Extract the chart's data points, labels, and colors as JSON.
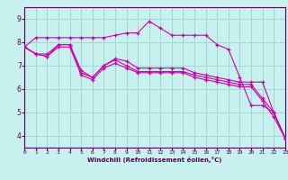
{
  "background_color": "#c8f0ee",
  "grid_color": "#a0d8d4",
  "line_color": "#cc00aa",
  "xlim": [
    0,
    23
  ],
  "ylim": [
    3.5,
    9.5
  ],
  "yticks": [
    4,
    5,
    6,
    7,
    8,
    9
  ],
  "xticks": [
    0,
    1,
    2,
    3,
    4,
    5,
    6,
    7,
    8,
    9,
    10,
    11,
    12,
    13,
    14,
    15,
    16,
    17,
    18,
    19,
    20,
    21,
    22,
    23
  ],
  "xlabel": "Windchill (Refroidissement éolien,°C)",
  "series": [
    [
      7.8,
      8.2,
      8.2,
      8.2,
      8.2,
      8.2,
      8.2,
      8.2,
      8.3,
      8.4,
      8.4,
      8.9,
      8.6,
      8.3,
      8.3,
      8.3,
      8.3,
      7.9,
      7.7,
      6.5,
      5.3,
      5.3,
      5.0,
      3.9
    ],
    [
      7.8,
      7.5,
      7.5,
      7.9,
      7.9,
      6.8,
      6.5,
      7.0,
      7.3,
      7.2,
      6.9,
      6.9,
      6.9,
      6.9,
      6.9,
      6.7,
      6.6,
      6.5,
      6.4,
      6.3,
      6.3,
      6.3,
      5.0,
      3.9
    ],
    [
      7.8,
      7.5,
      7.4,
      7.9,
      7.9,
      6.7,
      6.5,
      7.0,
      7.25,
      7.0,
      6.75,
      6.75,
      6.75,
      6.75,
      6.75,
      6.6,
      6.5,
      6.4,
      6.3,
      6.2,
      6.2,
      5.6,
      5.0,
      3.9
    ],
    [
      7.8,
      7.5,
      7.4,
      7.8,
      7.8,
      6.6,
      6.4,
      6.9,
      7.1,
      6.9,
      6.7,
      6.7,
      6.7,
      6.7,
      6.7,
      6.5,
      6.4,
      6.3,
      6.2,
      6.1,
      6.1,
      5.5,
      4.8,
      3.9
    ]
  ]
}
